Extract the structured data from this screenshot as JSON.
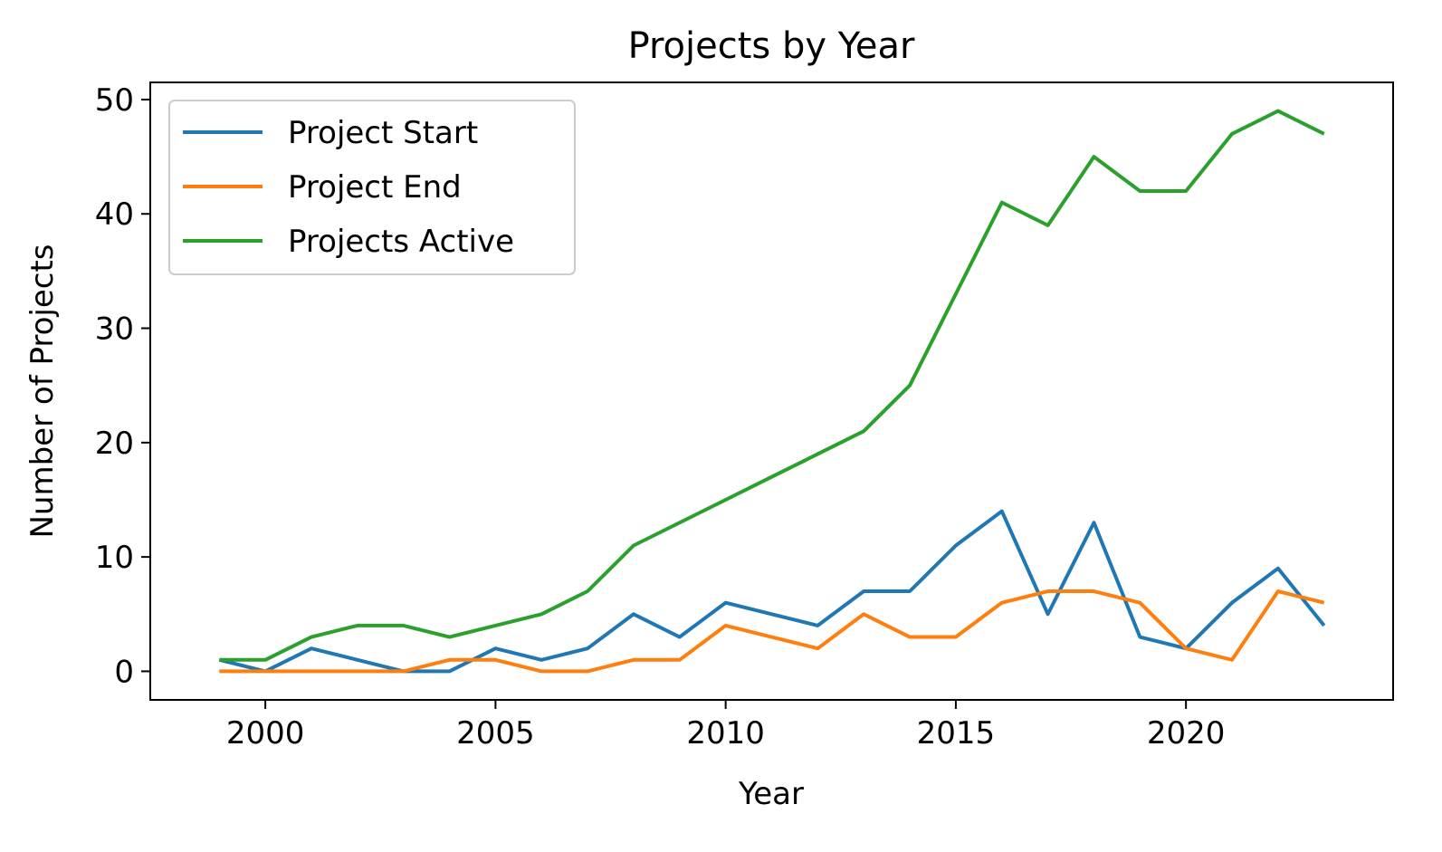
{
  "chart_data": {
    "type": "line",
    "title": "Projects by Year",
    "xlabel": "Year",
    "ylabel": "Number of Projects",
    "xlim": [
      1997.5,
      2024.5
    ],
    "ylim": [
      -2.5,
      51.5
    ],
    "xticks": [
      2000,
      2005,
      2010,
      2015,
      2020
    ],
    "yticks": [
      0,
      10,
      20,
      30,
      40,
      50
    ],
    "grid": false,
    "legend_position": "top-left",
    "x": [
      1999,
      2000,
      2001,
      2002,
      2003,
      2004,
      2005,
      2006,
      2007,
      2008,
      2009,
      2010,
      2011,
      2012,
      2013,
      2014,
      2015,
      2016,
      2017,
      2018,
      2019,
      2020,
      2021,
      2022,
      2023
    ],
    "series": [
      {
        "name": "Project Start",
        "color": "#1f77b4",
        "values": [
          1,
          0,
          2,
          1,
          0,
          0,
          2,
          1,
          2,
          5,
          3,
          6,
          5,
          4,
          7,
          7,
          11,
          14,
          5,
          13,
          3,
          2,
          6,
          9,
          4
        ]
      },
      {
        "name": "Project End",
        "color": "#ff7f0e",
        "values": [
          0,
          0,
          0,
          0,
          0,
          1,
          1,
          0,
          0,
          1,
          1,
          4,
          3,
          2,
          5,
          3,
          3,
          6,
          7,
          7,
          6,
          2,
          1,
          7,
          6
        ]
      },
      {
        "name": "Projects Active",
        "color": "#2ca02c",
        "values": [
          1,
          1,
          3,
          4,
          4,
          3,
          4,
          5,
          7,
          11,
          13,
          15,
          17,
          19,
          21,
          25,
          33,
          41,
          39,
          45,
          42,
          42,
          47,
          49,
          47
        ]
      }
    ]
  }
}
